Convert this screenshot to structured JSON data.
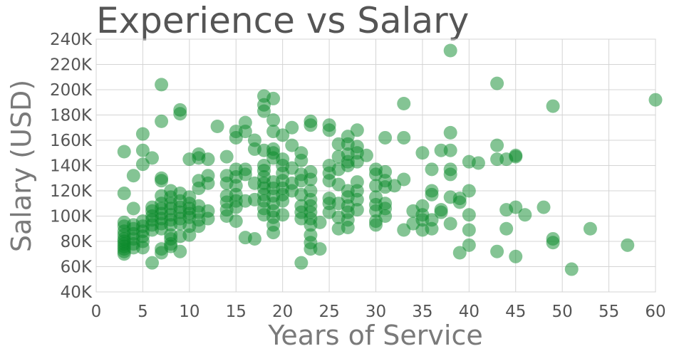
{
  "chart_data": {
    "type": "scatter",
    "title": "Experience vs Salary",
    "xlabel": "Years of Service",
    "ylabel": "Salary (USD)",
    "xlim": [
      0,
      60
    ],
    "ylim": [
      40000,
      240000
    ],
    "xticks": [
      0,
      5,
      10,
      15,
      20,
      25,
      30,
      35,
      40,
      45,
      50,
      55,
      60
    ],
    "xtick_labels": [
      "0",
      "5",
      "10",
      "15",
      "20",
      "25",
      "30",
      "35",
      "40",
      "45",
      "50",
      "55",
      "60"
    ],
    "yticks": [
      40000,
      60000,
      80000,
      100000,
      120000,
      140000,
      160000,
      180000,
      200000,
      220000,
      240000
    ],
    "ytick_labels": [
      "40K",
      "60K",
      "80K",
      "100K",
      "120K",
      "140K",
      "160K",
      "180K",
      "200K",
      "220K",
      "240K"
    ],
    "grid": true,
    "marker_color": "#0a8a2a",
    "marker_opacity": 0.5,
    "series": [
      {
        "name": "Salary",
        "points": [
          [
            3,
            151000
          ],
          [
            3,
            118000
          ],
          [
            3,
            95000
          ],
          [
            3,
            92000
          ],
          [
            3,
            88000
          ],
          [
            3,
            85000
          ],
          [
            3,
            82000
          ],
          [
            3,
            80000
          ],
          [
            3,
            78000
          ],
          [
            3,
            76000
          ],
          [
            3,
            74000
          ],
          [
            3,
            72000
          ],
          [
            3,
            70000
          ],
          [
            4,
            93000
          ],
          [
            4,
            90000
          ],
          [
            4,
            86000
          ],
          [
            4,
            82000
          ],
          [
            4,
            78000
          ],
          [
            4,
            75000
          ],
          [
            4,
            106000
          ],
          [
            4,
            132000
          ],
          [
            5,
            165000
          ],
          [
            5,
            152000
          ],
          [
            5,
            141000
          ],
          [
            5,
            96000
          ],
          [
            5,
            92000
          ],
          [
            5,
            88000
          ],
          [
            5,
            84000
          ],
          [
            5,
            80000
          ],
          [
            5,
            75000
          ],
          [
            6,
            146000
          ],
          [
            6,
            107000
          ],
          [
            6,
            104000
          ],
          [
            6,
            100000
          ],
          [
            6,
            97000
          ],
          [
            6,
            93000
          ],
          [
            6,
            89000
          ],
          [
            6,
            63000
          ],
          [
            7,
            204000
          ],
          [
            7,
            175000
          ],
          [
            7,
            130000
          ],
          [
            7,
            128000
          ],
          [
            7,
            116000
          ],
          [
            7,
            110000
          ],
          [
            7,
            106000
          ],
          [
            7,
            102000
          ],
          [
            7,
            98000
          ],
          [
            7,
            94000
          ],
          [
            7,
            90000
          ],
          [
            7,
            74000
          ],
          [
            7,
            71000
          ],
          [
            8,
            120000
          ],
          [
            8,
            115000
          ],
          [
            8,
            110000
          ],
          [
            8,
            106000
          ],
          [
            8,
            101000
          ],
          [
            8,
            97000
          ],
          [
            8,
            93000
          ],
          [
            8,
            85000
          ],
          [
            8,
            82000
          ],
          [
            8,
            78000
          ],
          [
            8,
            76000
          ],
          [
            9,
            184000
          ],
          [
            9,
            181000
          ],
          [
            9,
            118000
          ],
          [
            9,
            112000
          ],
          [
            9,
            107000
          ],
          [
            9,
            103000
          ],
          [
            9,
            98000
          ],
          [
            9,
            94000
          ],
          [
            9,
            84000
          ],
          [
            9,
            72000
          ],
          [
            10,
            145000
          ],
          [
            10,
            115000
          ],
          [
            10,
            110000
          ],
          [
            10,
            106000
          ],
          [
            10,
            102000
          ],
          [
            10,
            99000
          ],
          [
            10,
            92000
          ],
          [
            10,
            85000
          ],
          [
            11,
            149000
          ],
          [
            11,
            146000
          ],
          [
            11,
            128000
          ],
          [
            11,
            122000
          ],
          [
            11,
            108000
          ],
          [
            11,
            103000
          ],
          [
            11,
            97000
          ],
          [
            11,
            92000
          ],
          [
            12,
            145000
          ],
          [
            12,
            132000
          ],
          [
            12,
            126000
          ],
          [
            12,
            104000
          ],
          [
            12,
            98000
          ],
          [
            13,
            171000
          ],
          [
            14,
            147000
          ],
          [
            14,
            132000
          ],
          [
            14,
            126000
          ],
          [
            14,
            116000
          ],
          [
            14,
            111000
          ],
          [
            14,
            105000
          ],
          [
            14,
            100000
          ],
          [
            15,
            167000
          ],
          [
            15,
            162000
          ],
          [
            15,
            137000
          ],
          [
            15,
            131000
          ],
          [
            15,
            124000
          ],
          [
            15,
            117000
          ],
          [
            15,
            112000
          ],
          [
            15,
            107000
          ],
          [
            15,
            96000
          ],
          [
            16,
            174000
          ],
          [
            16,
            167000
          ],
          [
            16,
            137000
          ],
          [
            16,
            133000
          ],
          [
            16,
            112000
          ],
          [
            16,
            83000
          ],
          [
            17,
            160000
          ],
          [
            17,
            153000
          ],
          [
            17,
            126000
          ],
          [
            17,
            113000
          ],
          [
            17,
            82000
          ],
          [
            18,
            195000
          ],
          [
            18,
            188000
          ],
          [
            18,
            183000
          ],
          [
            18,
            152000
          ],
          [
            18,
            140000
          ],
          [
            18,
            136000
          ],
          [
            18,
            131000
          ],
          [
            18,
            126000
          ],
          [
            18,
            122000
          ],
          [
            18,
            117000
          ],
          [
            18,
            112000
          ],
          [
            18,
            106000
          ],
          [
            18,
            101000
          ],
          [
            19,
            193000
          ],
          [
            19,
            176000
          ],
          [
            19,
            167000
          ],
          [
            19,
            153000
          ],
          [
            19,
            150000
          ],
          [
            19,
            146000
          ],
          [
            19,
            127000
          ],
          [
            19,
            122000
          ],
          [
            19,
            116000
          ],
          [
            19,
            110000
          ],
          [
            19,
            104000
          ],
          [
            19,
            99000
          ],
          [
            19,
            93000
          ],
          [
            19,
            87000
          ],
          [
            20,
            164000
          ],
          [
            20,
            145000
          ],
          [
            20,
            140000
          ],
          [
            20,
            134000
          ],
          [
            20,
            128000
          ],
          [
            20,
            122000
          ],
          [
            20,
            117000
          ],
          [
            20,
            112000
          ],
          [
            20,
            101000
          ],
          [
            21,
            170000
          ],
          [
            21,
            156000
          ],
          [
            21,
            138000
          ],
          [
            21,
            126000
          ],
          [
            21,
            120000
          ],
          [
            22,
            150000
          ],
          [
            22,
            144000
          ],
          [
            22,
            133000
          ],
          [
            22,
            128000
          ],
          [
            22,
            117000
          ],
          [
            22,
            108000
          ],
          [
            22,
            103000
          ],
          [
            22,
            98000
          ],
          [
            22,
            63000
          ],
          [
            23,
            175000
          ],
          [
            23,
            172000
          ],
          [
            23,
            135000
          ],
          [
            23,
            129000
          ],
          [
            23,
            120000
          ],
          [
            23,
            113000
          ],
          [
            23,
            108000
          ],
          [
            23,
            103000
          ],
          [
            23,
            98000
          ],
          [
            23,
            93000
          ],
          [
            23,
            85000
          ],
          [
            23,
            79000
          ],
          [
            23,
            74000
          ],
          [
            24,
            74000
          ],
          [
            24,
            95000
          ],
          [
            25,
            172000
          ],
          [
            25,
            168000
          ],
          [
            25,
            140000
          ],
          [
            25,
            134000
          ],
          [
            25,
            128000
          ],
          [
            25,
            114000
          ],
          [
            25,
            110000
          ],
          [
            25,
            103000
          ],
          [
            26,
            157000
          ],
          [
            26,
            147000
          ],
          [
            26,
            137000
          ],
          [
            26,
            125000
          ],
          [
            26,
            110000
          ],
          [
            26,
            99000
          ],
          [
            26,
            90000
          ],
          [
            27,
            163000
          ],
          [
            27,
            157000
          ],
          [
            27,
            149000
          ],
          [
            27,
            143000
          ],
          [
            27,
            140000
          ],
          [
            27,
            120000
          ],
          [
            27,
            115000
          ],
          [
            27,
            108000
          ],
          [
            27,
            103000
          ],
          [
            27,
            97000
          ],
          [
            27,
            91000
          ],
          [
            28,
            168000
          ],
          [
            28,
            155000
          ],
          [
            28,
            150000
          ],
          [
            28,
            143000
          ],
          [
            28,
            127000
          ],
          [
            28,
            120000
          ],
          [
            28,
            113000
          ],
          [
            28,
            105000
          ],
          [
            29,
            148000
          ],
          [
            30,
            137000
          ],
          [
            30,
            133000
          ],
          [
            30,
            124000
          ],
          [
            30,
            115000
          ],
          [
            30,
            109000
          ],
          [
            30,
            104000
          ],
          [
            30,
            96000
          ],
          [
            30,
            93000
          ],
          [
            31,
            162000
          ],
          [
            31,
            135000
          ],
          [
            31,
            128000
          ],
          [
            31,
            123000
          ],
          [
            31,
            110000
          ],
          [
            31,
            106000
          ],
          [
            31,
            100000
          ],
          [
            32,
            124000
          ],
          [
            33,
            189000
          ],
          [
            33,
            162000
          ],
          [
            33,
            129000
          ],
          [
            33,
            89000
          ],
          [
            34,
            104000
          ],
          [
            34,
            94000
          ],
          [
            35,
            150000
          ],
          [
            35,
            108000
          ],
          [
            35,
            101000
          ],
          [
            35,
            97000
          ],
          [
            35,
            89000
          ],
          [
            36,
            137000
          ],
          [
            36,
            120000
          ],
          [
            36,
            117000
          ],
          [
            36,
            97000
          ],
          [
            36,
            90000
          ],
          [
            37,
            152000
          ],
          [
            37,
            105000
          ],
          [
            37,
            103000
          ],
          [
            38,
            231000
          ],
          [
            38,
            166000
          ],
          [
            38,
            152000
          ],
          [
            38,
            137000
          ],
          [
            38,
            133000
          ],
          [
            38,
            115000
          ],
          [
            38,
            94000
          ],
          [
            39,
            114000
          ],
          [
            39,
            111000
          ],
          [
            39,
            71000
          ],
          [
            40,
            143000
          ],
          [
            40,
            120000
          ],
          [
            40,
            101000
          ],
          [
            40,
            89000
          ],
          [
            40,
            77000
          ],
          [
            41,
            142000
          ],
          [
            43,
            205000
          ],
          [
            43,
            156000
          ],
          [
            43,
            145000
          ],
          [
            43,
            72000
          ],
          [
            44,
            145000
          ],
          [
            44,
            105000
          ],
          [
            44,
            90000
          ],
          [
            45,
            148000
          ],
          [
            45,
            147000
          ],
          [
            45,
            107000
          ],
          [
            45,
            68000
          ],
          [
            46,
            101000
          ],
          [
            48,
            107000
          ],
          [
            49,
            187000
          ],
          [
            49,
            82000
          ],
          [
            49,
            79000
          ],
          [
            51,
            58000
          ],
          [
            53,
            90000
          ],
          [
            57,
            77000
          ],
          [
            60,
            192000
          ]
        ]
      }
    ]
  }
}
